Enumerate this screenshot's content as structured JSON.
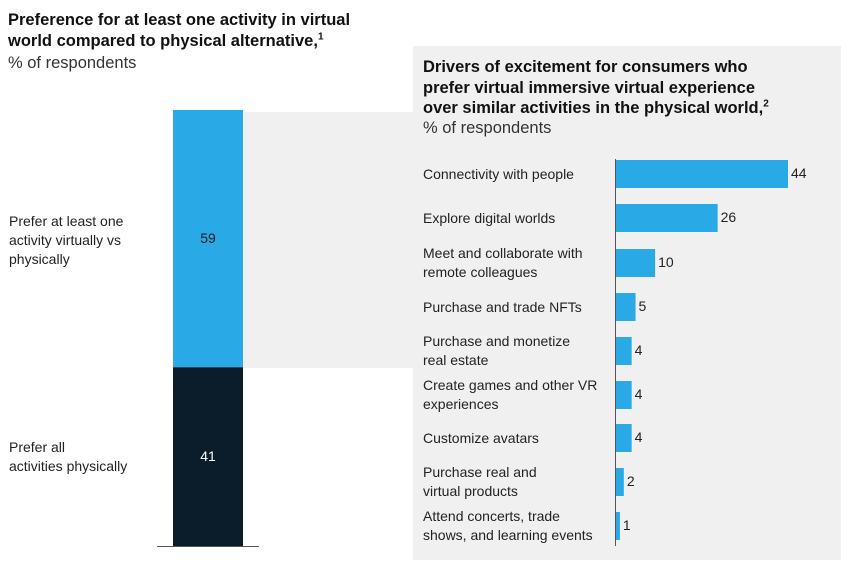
{
  "left_panel": {
    "title_lines": [
      "Preference for at least one activity in virtual",
      "world compared to physical alternative,"
    ],
    "title_footnote": "1",
    "subtitle": "% of respondents"
  },
  "right_panel": {
    "title_lines": [
      "Drivers of excitement for consumers who",
      "prefer virtual immersive virtual experience",
      "over similar activities in the physical world,"
    ],
    "title_footnote": "2",
    "subtitle": "% of respondents"
  },
  "colors": {
    "virtual": "#29a9e6",
    "physical": "#0b1d2b",
    "bar": "#29a9e6",
    "panel": "#f0f0f0"
  },
  "chart_data": [
    {
      "type": "bar",
      "stacked": true,
      "orientation": "vertical",
      "title": "Preference for at least one activity in virtual world compared to physical alternative,",
      "ylabel": "% of respondents",
      "series": [
        {
          "label_lines": [
            "Prefer at least one",
            "activity virtually vs",
            "physically"
          ],
          "value": 59,
          "display": "59"
        },
        {
          "label_lines": [
            "Prefer all",
            "activities physically"
          ],
          "value": 41,
          "display": "41"
        }
      ]
    },
    {
      "type": "bar",
      "orientation": "horizontal",
      "title": "Drivers of excitement for consumers who prefer virtual immersive virtual experience over similar activities in the physical world,",
      "xlabel": "% of respondents",
      "categories": [
        [
          "Connectivity with people"
        ],
        [
          "Explore digital worlds"
        ],
        [
          "Meet and collaborate with",
          "remote colleagues"
        ],
        [
          "Purchase and trade NFTs"
        ],
        [
          "Purchase and monetize",
          "real estate"
        ],
        [
          "Create games and other VR",
          "experiences"
        ],
        [
          "Customize avatars"
        ],
        [
          "Purchase real and",
          "virtual products"
        ],
        [
          "Attend concerts, trade",
          "shows, and learning events"
        ]
      ],
      "values": [
        44,
        26,
        10,
        5,
        4,
        4,
        4,
        2,
        1
      ],
      "labels": [
        "44",
        "26",
        "10",
        "5",
        "4",
        "4",
        "4",
        "2",
        "1"
      ]
    }
  ]
}
